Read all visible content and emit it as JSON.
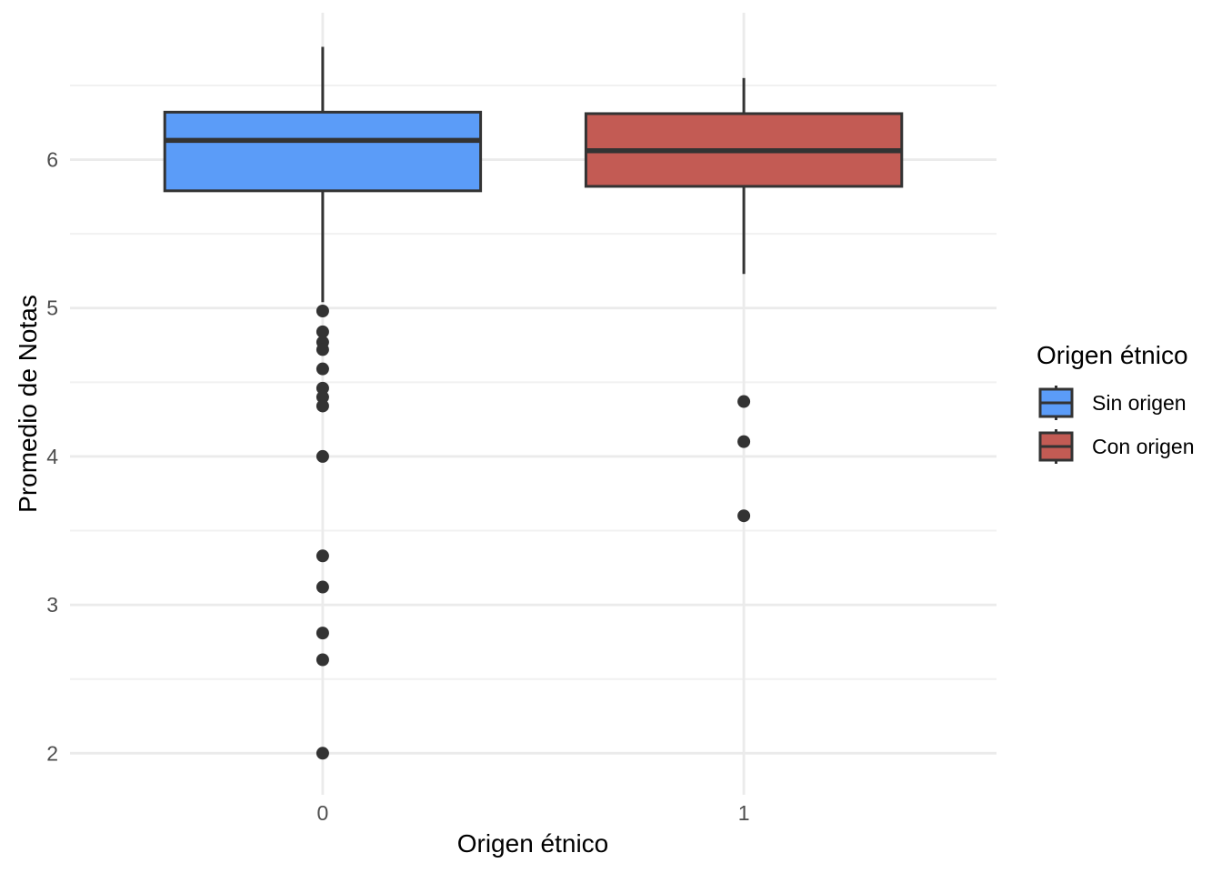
{
  "chart_data": {
    "type": "boxplot",
    "title": "",
    "xlabel": "Origen étnico",
    "ylabel": "Promedio de Notas",
    "grid": "on",
    "background": "#FFFFFF",
    "x_axis": {
      "categories": [
        {
          "label": "0"
        },
        {
          "label": "1"
        }
      ],
      "range": [
        0.4,
        2.6
      ]
    },
    "y_axis": {
      "range": [
        1.72,
        6.99
      ],
      "ticks": [
        {
          "v": 6,
          "label": "6"
        },
        {
          "v": 5,
          "label": "5"
        },
        {
          "v": 4,
          "label": "4"
        },
        {
          "v": 3,
          "label": "3"
        },
        {
          "v": 2,
          "label": "2"
        }
      ],
      "minor_ticks": [
        6.5,
        5.5,
        4.5,
        3.5,
        2.5
      ]
    },
    "series": [
      {
        "name": "Sin origen",
        "category": "0",
        "fill": "#5B9CF8",
        "whisker_low": 5.04,
        "q1": 5.79,
        "median": 6.13,
        "q3": 6.32,
        "whisker_high": 6.76,
        "outliers": [
          4.98,
          4.84,
          4.77,
          4.72,
          4.59,
          4.46,
          4.4,
          4.34,
          4.0,
          3.33,
          3.12,
          2.81,
          2.63,
          2.0
        ]
      },
      {
        "name": "Con origen",
        "category": "1",
        "fill": "#C35B54",
        "whisker_low": 5.23,
        "q1": 5.82,
        "median": 6.06,
        "q3": 6.31,
        "whisker_high": 6.55,
        "outliers": [
          4.37,
          4.1,
          3.6
        ]
      }
    ],
    "legend": {
      "title": "Origen étnico",
      "position": "right",
      "entries": [
        {
          "label": "Sin origen",
          "fill": "#5B9CF8"
        },
        {
          "label": "Con origen",
          "fill": "#C35B54"
        }
      ]
    },
    "colors": {
      "box_stroke": "#333333",
      "outlier_fill": "#333333",
      "grid_major": "#EBEBEB",
      "grid_minor": "#F1F1F1",
      "tick_label": "#4D4D4D",
      "axis_title": "#000000"
    }
  }
}
